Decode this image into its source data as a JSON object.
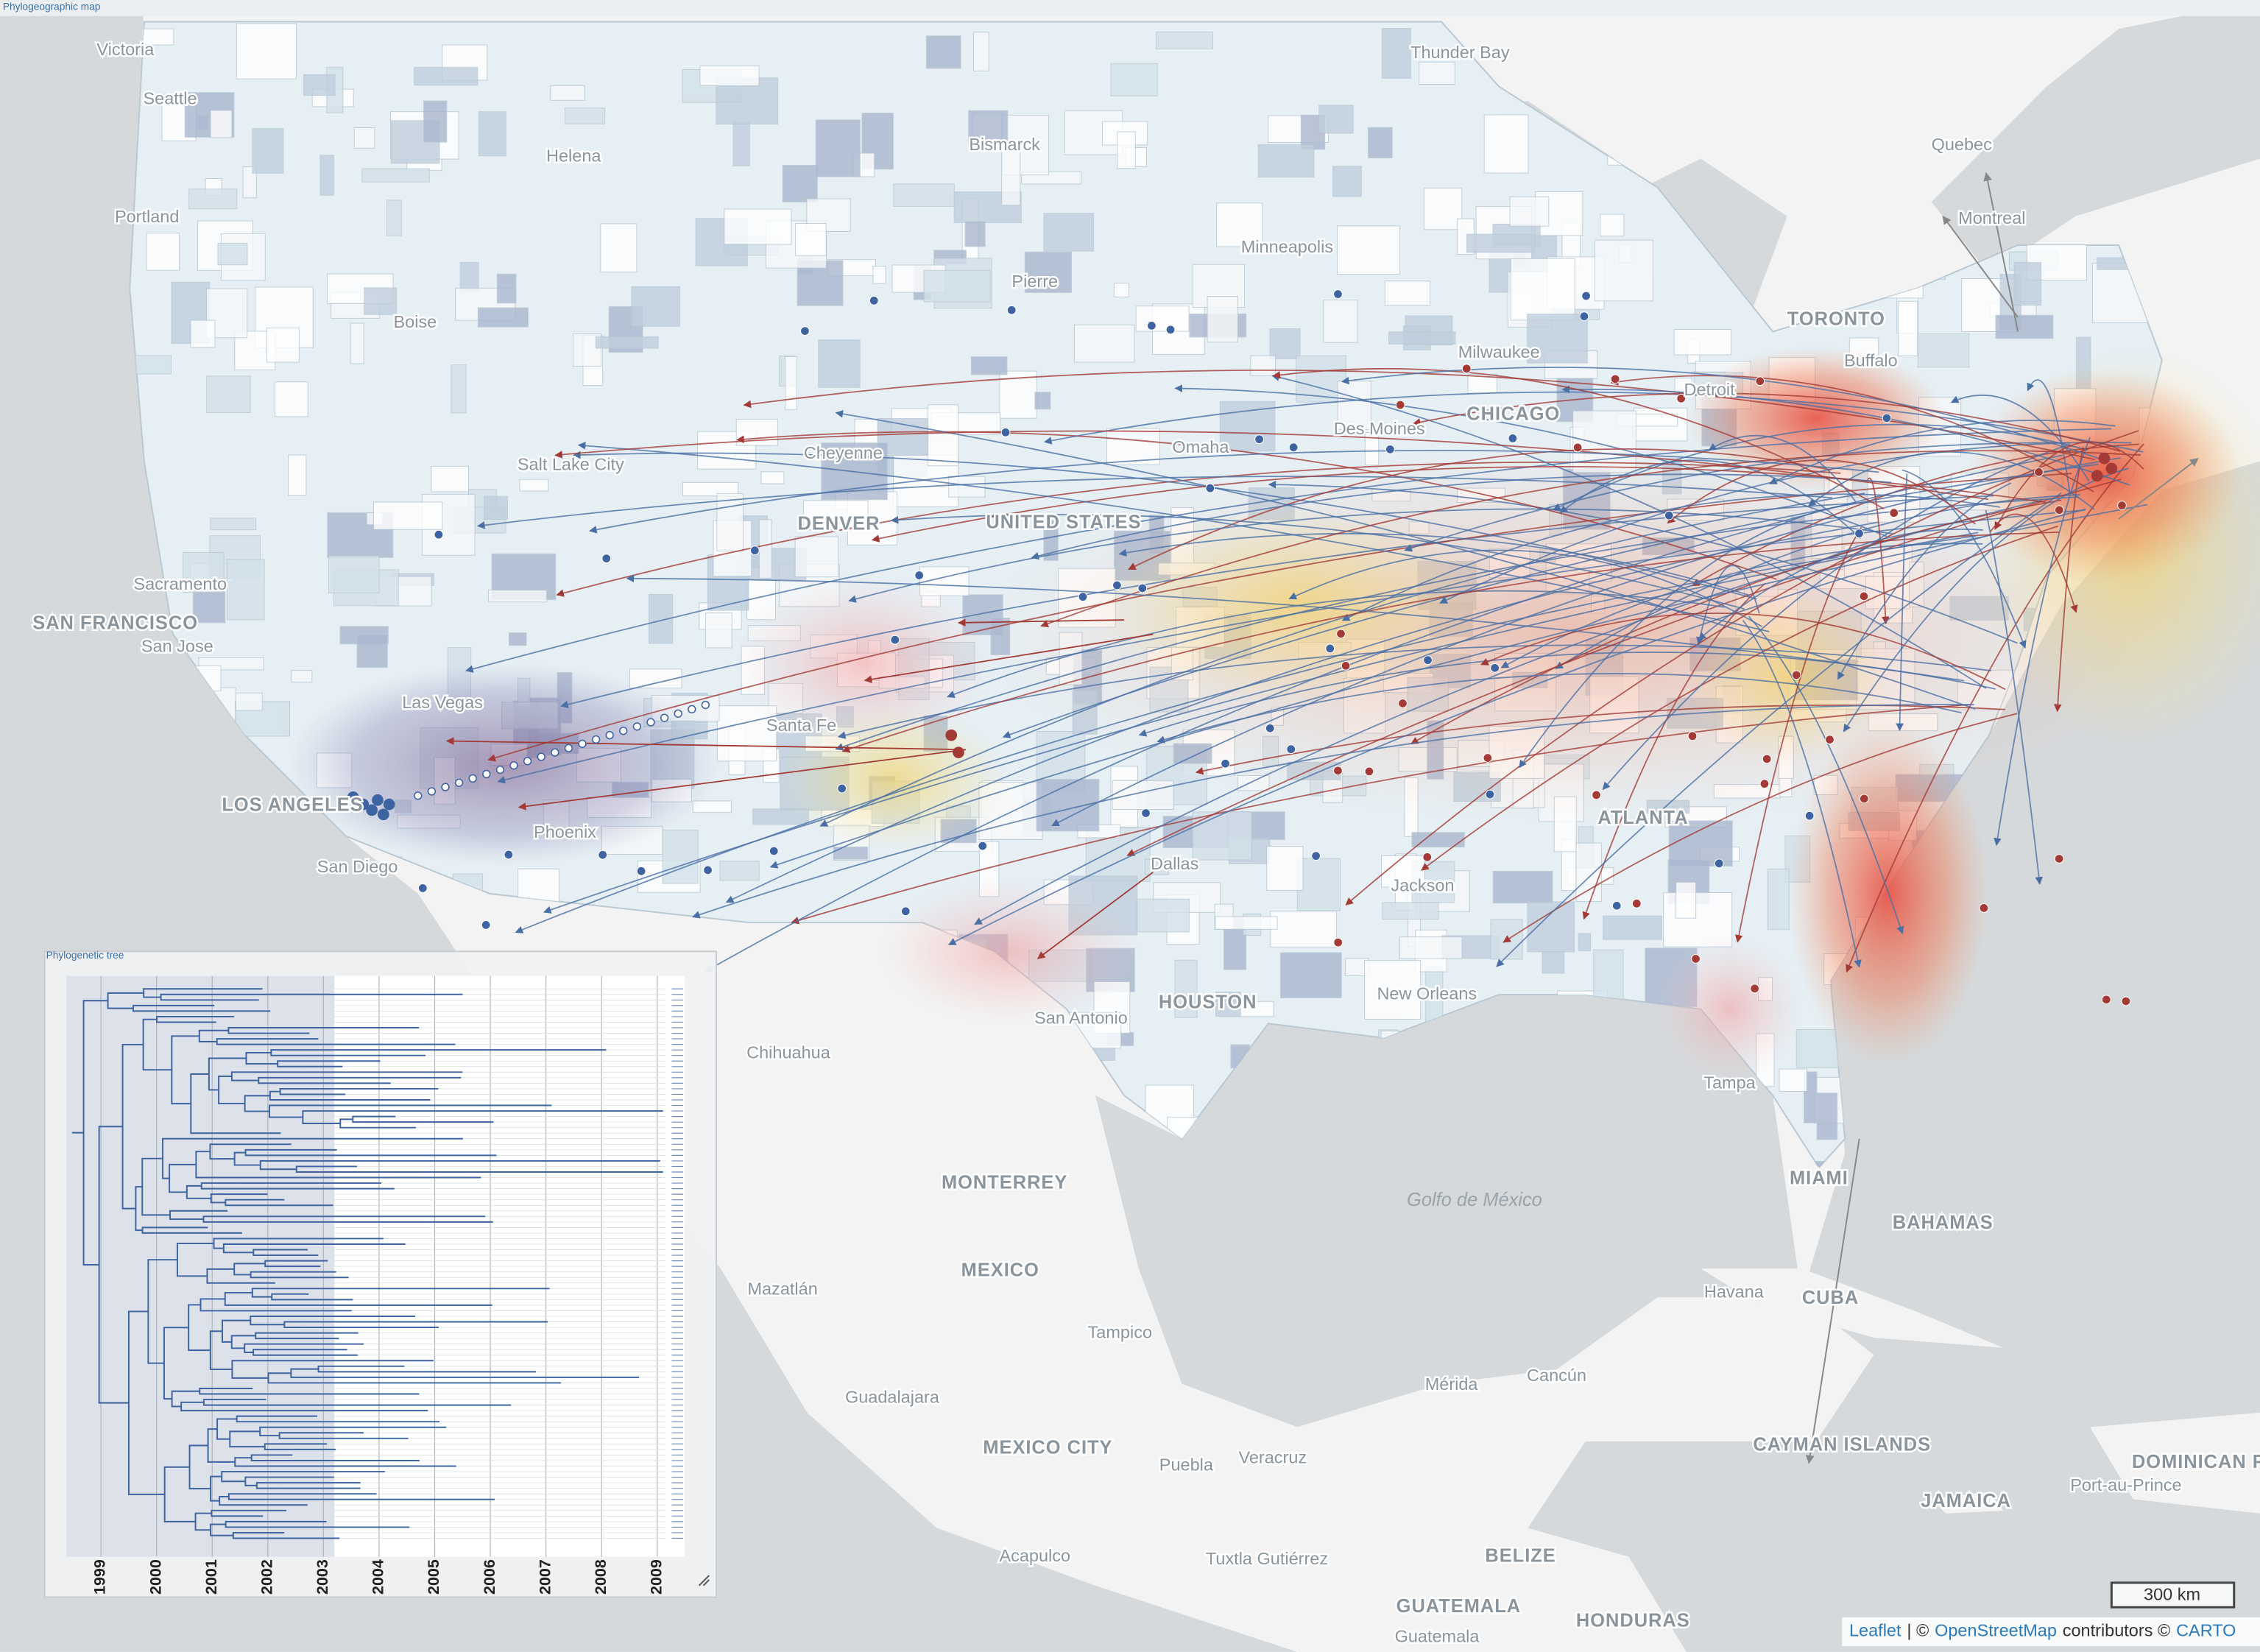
{
  "header": {
    "title": "Phylogeographic map"
  },
  "map": {
    "cities": [
      "Victoria",
      "Seattle",
      "Helena",
      "Bismarck",
      "Thunder Bay",
      "Quebec",
      "Montreal",
      "Portland",
      "Pierre",
      "Minneapolis",
      "Boise",
      "TORONTO",
      "Milwaukee",
      "Buffalo",
      "Detroit",
      "CHICAGO",
      "Des Moines",
      "Omaha",
      "Salt Lake City",
      "Cheyenne",
      "DENVER",
      "UNITED STATES",
      "Sacramento",
      "SAN FRANCISCO",
      "San Jose",
      "Las Vegas",
      "Santa Fe",
      "LOS ANGELES",
      "Phoenix",
      "San Diego",
      "Dallas",
      "ATLANTA",
      "Jackson",
      "HOUSTON",
      "New Orleans",
      "San Antonio",
      "Chihuahua",
      "Tampa",
      "MIAMI",
      "MONTERREY",
      "Golfo de México",
      "BAHAMAS",
      "MEXICO",
      "Mazatlán",
      "Havana",
      "CUBA",
      "Tampico",
      "Guadalajara",
      "Mérida",
      "Cancún",
      "CAYMAN ISLANDS",
      "MEXICO CITY",
      "Puebla",
      "Veracruz",
      "Port-au-Prince",
      "JAMAICA",
      "Acapulco",
      "Tuxtla Gutiérrez",
      "BELIZE",
      "GUATEMALA",
      "HONDURAS",
      "Guatemala",
      "DOMINICAN REPU"
    ],
    "scale": "300 km",
    "attribution": {
      "leaflet": "Leaflet",
      "sep": "| ©",
      "osm": "OpenStreetMap",
      "contrib": "contributors ©",
      "carto": "CARTO"
    }
  },
  "tree": {
    "title": "Phylogenetic tree",
    "years": [
      1999,
      2000,
      2001,
      2002,
      2003,
      2004,
      2005,
      2006,
      2007,
      2008,
      2009
    ]
  }
}
